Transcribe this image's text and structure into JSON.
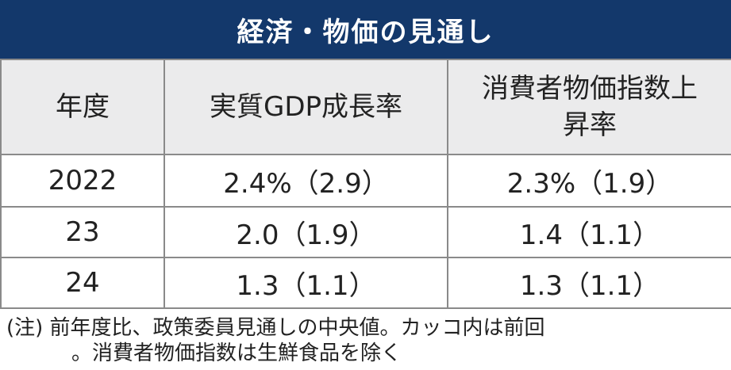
{
  "title": "経済・物価の見通し",
  "table": {
    "headers": [
      "年度",
      "実質GDP成長率",
      "消費者物価指数上昇率"
    ],
    "header_cpi_line1": "消費者物価指数上",
    "header_cpi_line2": "昇率",
    "rows": [
      {
        "year": "2022",
        "gdp": "2.4%（2.9）",
        "cpi": "2.3%（1.9）"
      },
      {
        "year": "23",
        "gdp": "2.0（1.9）",
        "cpi": "1.4（1.1）"
      },
      {
        "year": "24",
        "gdp": "1.3（1.1）",
        "cpi": "1.3（1.1）"
      }
    ]
  },
  "note": {
    "line1": "(注) 前年度比、政策委員見通しの中央値。カッコ内は前回",
    "line2": "。消費者物価指数は生鮮食品を除く"
  },
  "colors": {
    "title_bg": "#13386b",
    "header_bg": "#ebebec",
    "border": "#8a8a8a"
  }
}
